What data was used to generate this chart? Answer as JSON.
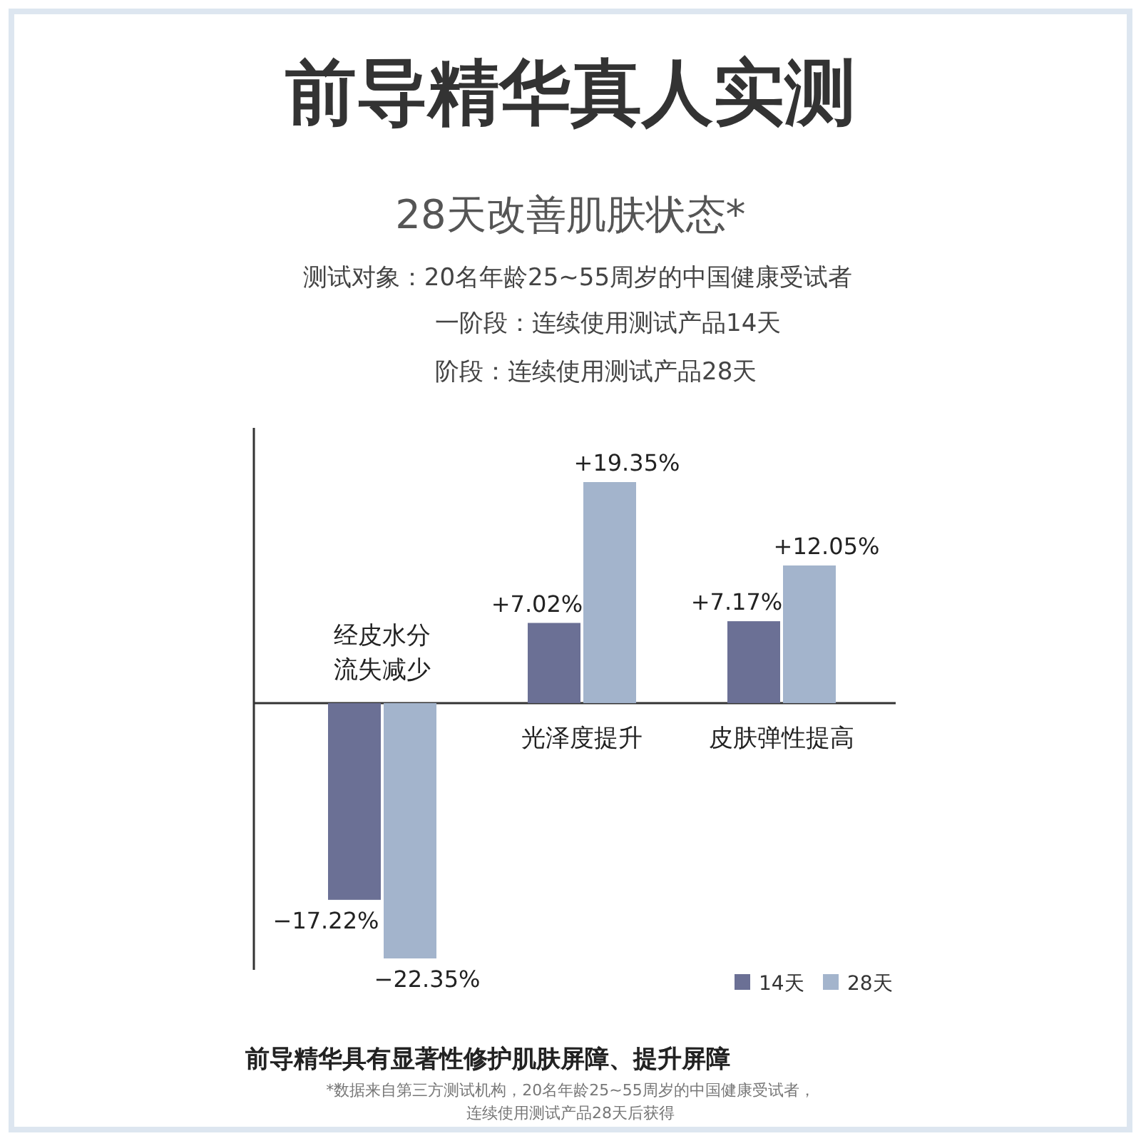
{
  "chart_data": {
    "type": "bar",
    "title": "前导精华真人实测",
    "subtitle": "28天改善肌肤状态*",
    "annotations": [
      "测试对象：20名年龄25~55周岁的中国健康受试者",
      "一阶段：连续使用测试产品14天",
      "阶段：连续使用测试产品28天",
      "前导精华具有显著性修护肌肤屏障、提升屏障",
      "*数据来自第三方测试机构，20名年龄25~55周岁的中国健康受试者，连续使用测试产品28天后获得"
    ],
    "categories": [
      "经皮水分流失减少",
      "光泽度提升",
      "皮肤弹性提高"
    ],
    "series": [
      {
        "name": "14天",
        "color": "#6b7095",
        "values": [
          -17.22,
          7.02,
          7.17
        ],
        "value_labels": [
          "−17.22%",
          "+7.02%",
          "+7.17%"
        ]
      },
      {
        "name": "28天",
        "color": "#a3b4cc",
        "values": [
          -22.35,
          19.35,
          12.05
        ],
        "value_labels": [
          "−22.35%",
          "+19.35%",
          "+12.05%"
        ]
      }
    ],
    "legend": "bottom right"
  }
}
